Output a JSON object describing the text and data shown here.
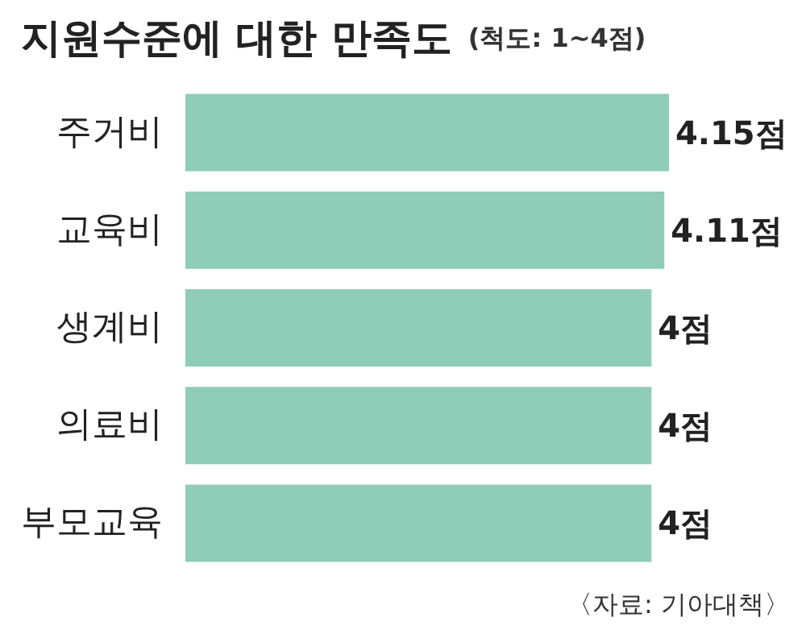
{
  "chart_data": {
    "type": "bar",
    "orientation": "horizontal",
    "title": "지원수준에 대한 만족도",
    "subtitle": "(척도: 1~4점)",
    "categories": [
      "주거비",
      "교육비",
      "생계비",
      "의료비",
      "부모교육"
    ],
    "values": [
      4.15,
      4.11,
      4,
      4,
      4
    ],
    "value_labels": [
      "4.15점",
      "4.11점",
      "4점",
      "4점",
      "4점"
    ],
    "color": "#8fcdb8",
    "annotations": [
      "〈자료: 기아대책〉"
    ]
  }
}
